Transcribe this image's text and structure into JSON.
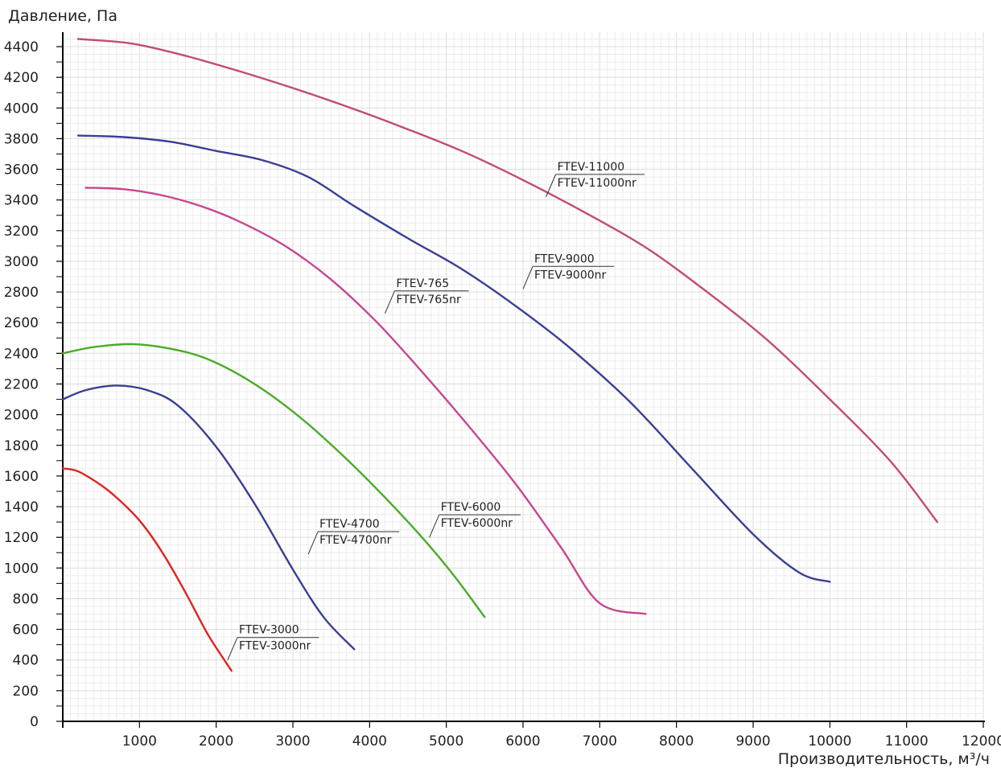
{
  "chart_data": {
    "type": "line",
    "ylabel": "Давление, Па",
    "xlabel": "Производительность, м³/ч",
    "xlim": [
      0,
      12000
    ],
    "ylim": [
      0,
      4500
    ],
    "xticks": [
      0,
      1000,
      2000,
      3000,
      4000,
      5000,
      6000,
      7000,
      8000,
      9000,
      10000,
      11000,
      12000
    ],
    "yticks": [
      0,
      200,
      400,
      600,
      800,
      1000,
      1200,
      1400,
      1600,
      1800,
      2000,
      2200,
      2400,
      2600,
      2800,
      3000,
      3200,
      3400,
      3600,
      3800,
      4000,
      4200,
      4400
    ],
    "grid": true,
    "series": [
      {
        "name": "FTEV-3000",
        "name2": "FTEV-3000nr",
        "color": "#e0231e",
        "x": [
          0,
          200,
          500,
          700,
          1000,
          1300,
          1600,
          1900,
          2200
        ],
        "y": [
          1650,
          1630,
          1540,
          1460,
          1310,
          1100,
          840,
          560,
          330
        ],
        "label_point": [
          2150,
          400
        ]
      },
      {
        "name": "FTEV-4700",
        "name2": "FTEV-4700nr",
        "color": "#3a3f94",
        "x": [
          0,
          300,
          700,
          1100,
          1500,
          2000,
          2500,
          3000,
          3400,
          3800
        ],
        "y": [
          2100,
          2160,
          2190,
          2160,
          2060,
          1790,
          1420,
          990,
          680,
          470
        ],
        "label_point": [
          3200,
          1090
        ]
      },
      {
        "name": "FTEV-6000",
        "name2": "FTEV-6000nr",
        "color": "#4aab2a",
        "x": [
          0,
          400,
          900,
          1400,
          1900,
          2500,
          3100,
          3700,
          4200,
          4700,
          5100,
          5500
        ],
        "y": [
          2400,
          2440,
          2460,
          2430,
          2360,
          2200,
          1980,
          1710,
          1460,
          1190,
          950,
          680
        ],
        "label_point": [
          4780,
          1200
        ]
      },
      {
        "name": "FTEV-765",
        "name2": "FTEV-765nr",
        "color": "#c6478f",
        "x": [
          300,
          800,
          1300,
          1800,
          2300,
          2900,
          3500,
          4100,
          4700,
          5300,
          5900,
          6500,
          7000,
          7600
        ],
        "y": [
          3480,
          3470,
          3430,
          3360,
          3260,
          3100,
          2880,
          2600,
          2270,
          1920,
          1550,
          1130,
          770,
          700
        ],
        "label_point": [
          4200,
          2660
        ]
      },
      {
        "name": "FTEV-9000",
        "name2": "FTEV-9000nr",
        "color": "#3a3f94",
        "x": [
          200,
          800,
          1400,
          2000,
          2600,
          3200,
          3800,
          4500,
          5200,
          5900,
          6600,
          7400,
          8200,
          9000,
          9600,
          10000
        ],
        "y": [
          3820,
          3810,
          3780,
          3720,
          3660,
          3550,
          3360,
          3150,
          2950,
          2710,
          2440,
          2080,
          1650,
          1220,
          970,
          910
        ],
        "label_point": [
          6000,
          2820
        ]
      },
      {
        "name": "FTEV-11000",
        "name2": "FTEV-11000nr",
        "color": "#c04e6e",
        "x": [
          200,
          900,
          1600,
          2300,
          3000,
          3700,
          4400,
          5200,
          6000,
          6800,
          7600,
          8400,
          9200,
          10000,
          10800,
          11400
        ],
        "y": [
          4450,
          4420,
          4340,
          4240,
          4130,
          4010,
          3880,
          3720,
          3530,
          3320,
          3090,
          2800,
          2480,
          2100,
          1690,
          1300
        ],
        "label_point": [
          6300,
          3420
        ]
      }
    ]
  }
}
